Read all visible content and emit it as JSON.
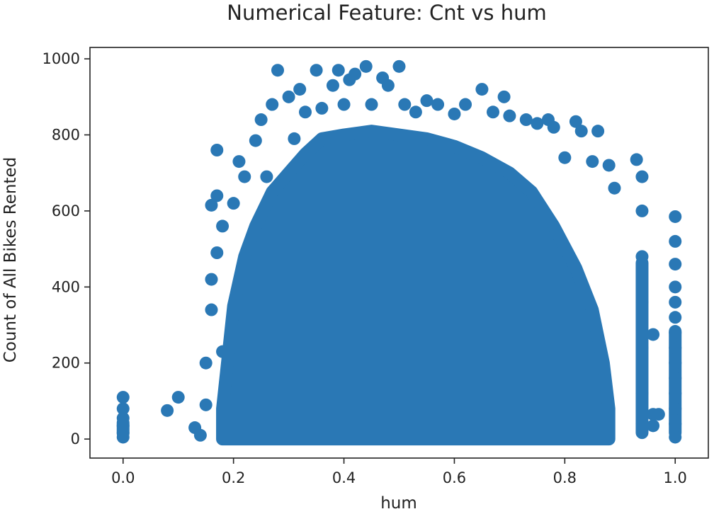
{
  "chart_data": {
    "type": "scatter",
    "title": "Numerical Feature: Cnt vs hum",
    "xlabel": "hum",
    "ylabel": "Count of All Bikes Rented",
    "xlim": [
      -0.06,
      1.06
    ],
    "ylim": [
      -50,
      1030
    ],
    "x_ticks": [
      {
        "value": 0.0,
        "label": "0.0"
      },
      {
        "value": 0.2,
        "label": "0.2"
      },
      {
        "value": 0.4,
        "label": "0.4"
      },
      {
        "value": 0.6,
        "label": "0.6"
      },
      {
        "value": 0.8,
        "label": "0.8"
      },
      {
        "value": 1.0,
        "label": "1.0"
      }
    ],
    "y_ticks": [
      {
        "value": 0,
        "label": "0"
      },
      {
        "value": 200,
        "label": "200"
      },
      {
        "value": 400,
        "label": "400"
      },
      {
        "value": 600,
        "label": "600"
      },
      {
        "value": 800,
        "label": "800"
      },
      {
        "value": 1000,
        "label": "1000"
      }
    ],
    "grid": false,
    "marker_color": "#2a78b5",
    "points": [
      {
        "x": 0.0,
        "y": 110
      },
      {
        "x": 0.0,
        "y": 80
      },
      {
        "x": 0.0,
        "y": 55
      },
      {
        "x": 0.0,
        "y": 35
      },
      {
        "x": 0.0,
        "y": 15
      },
      {
        "x": 0.0,
        "y": 5
      },
      {
        "x": 0.08,
        "y": 75
      },
      {
        "x": 0.1,
        "y": 110
      },
      {
        "x": 0.13,
        "y": 30
      },
      {
        "x": 0.14,
        "y": 10
      },
      {
        "x": 0.15,
        "y": 200
      },
      {
        "x": 0.15,
        "y": 90
      },
      {
        "x": 0.16,
        "y": 615
      },
      {
        "x": 0.16,
        "y": 420
      },
      {
        "x": 0.16,
        "y": 340
      },
      {
        "x": 0.17,
        "y": 760
      },
      {
        "x": 0.17,
        "y": 640
      },
      {
        "x": 0.17,
        "y": 490
      },
      {
        "x": 0.18,
        "y": 560
      },
      {
        "x": 0.18,
        "y": 230
      },
      {
        "x": 0.2,
        "y": 620
      },
      {
        "x": 0.21,
        "y": 730
      },
      {
        "x": 0.22,
        "y": 690
      },
      {
        "x": 0.24,
        "y": 785
      },
      {
        "x": 0.25,
        "y": 840
      },
      {
        "x": 0.26,
        "y": 690
      },
      {
        "x": 0.27,
        "y": 880
      },
      {
        "x": 0.28,
        "y": 970
      },
      {
        "x": 0.3,
        "y": 900
      },
      {
        "x": 0.31,
        "y": 790
      },
      {
        "x": 0.32,
        "y": 920
      },
      {
        "x": 0.33,
        "y": 860
      },
      {
        "x": 0.35,
        "y": 970
      },
      {
        "x": 0.36,
        "y": 870
      },
      {
        "x": 0.38,
        "y": 930
      },
      {
        "x": 0.39,
        "y": 970
      },
      {
        "x": 0.4,
        "y": 880
      },
      {
        "x": 0.41,
        "y": 945
      },
      {
        "x": 0.42,
        "y": 960
      },
      {
        "x": 0.44,
        "y": 980
      },
      {
        "x": 0.45,
        "y": 880
      },
      {
        "x": 0.47,
        "y": 950
      },
      {
        "x": 0.48,
        "y": 930
      },
      {
        "x": 0.5,
        "y": 980
      },
      {
        "x": 0.51,
        "y": 880
      },
      {
        "x": 0.53,
        "y": 860
      },
      {
        "x": 0.55,
        "y": 890
      },
      {
        "x": 0.57,
        "y": 880
      },
      {
        "x": 0.6,
        "y": 855
      },
      {
        "x": 0.62,
        "y": 880
      },
      {
        "x": 0.65,
        "y": 920
      },
      {
        "x": 0.67,
        "y": 860
      },
      {
        "x": 0.69,
        "y": 900
      },
      {
        "x": 0.7,
        "y": 850
      },
      {
        "x": 0.73,
        "y": 840
      },
      {
        "x": 0.75,
        "y": 830
      },
      {
        "x": 0.77,
        "y": 840
      },
      {
        "x": 0.78,
        "y": 820
      },
      {
        "x": 0.8,
        "y": 740
      },
      {
        "x": 0.82,
        "y": 835
      },
      {
        "x": 0.83,
        "y": 810
      },
      {
        "x": 0.85,
        "y": 730
      },
      {
        "x": 0.86,
        "y": 810
      },
      {
        "x": 0.88,
        "y": 720
      },
      {
        "x": 0.89,
        "y": 660
      },
      {
        "x": 0.93,
        "y": 735
      },
      {
        "x": 0.94,
        "y": 690
      },
      {
        "x": 0.94,
        "y": 600
      },
      {
        "x": 0.94,
        "y": 480
      },
      {
        "x": 0.94,
        "y": 360
      },
      {
        "x": 0.94,
        "y": 240
      },
      {
        "x": 0.94,
        "y": 120
      },
      {
        "x": 0.94,
        "y": 40
      },
      {
        "x": 0.96,
        "y": 275
      },
      {
        "x": 0.96,
        "y": 65
      },
      {
        "x": 0.96,
        "y": 35
      },
      {
        "x": 0.97,
        "y": 65
      },
      {
        "x": 1.0,
        "y": 585
      },
      {
        "x": 1.0,
        "y": 520
      },
      {
        "x": 1.0,
        "y": 460
      },
      {
        "x": 1.0,
        "y": 400
      },
      {
        "x": 1.0,
        "y": 360
      },
      {
        "x": 1.0,
        "y": 320
      },
      {
        "x": 1.0,
        "y": 280
      },
      {
        "x": 1.0,
        "y": 240
      },
      {
        "x": 1.0,
        "y": 200
      },
      {
        "x": 1.0,
        "y": 160
      },
      {
        "x": 1.0,
        "y": 120
      },
      {
        "x": 1.0,
        "y": 80
      },
      {
        "x": 1.0,
        "y": 40
      },
      {
        "x": 1.0,
        "y": 5
      }
    ]
  }
}
